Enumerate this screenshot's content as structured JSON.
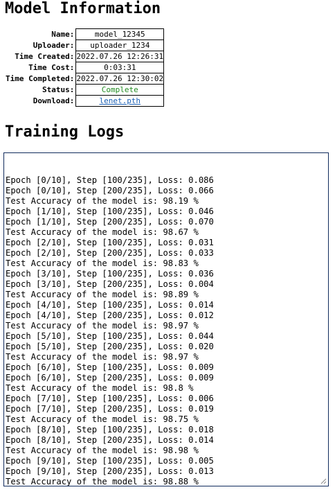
{
  "model_info": {
    "heading": "Model Information",
    "rows": [
      {
        "key": "Name:",
        "value": "model_12345"
      },
      {
        "key": "Uploader:",
        "value": "uploader_1234"
      },
      {
        "key": "Time Created:",
        "value": "2022.07.26 12:26:31"
      },
      {
        "key": "Time Cost:",
        "value": "0:03:31"
      },
      {
        "key": "Time Completed:",
        "value": "2022.07.26 12:30:02"
      },
      {
        "key": "Status:",
        "value": "Complete"
      },
      {
        "key": "Download:",
        "value": "lenet.pth"
      }
    ],
    "status_color": "#228b22",
    "link_color": "#1a5fb4"
  },
  "training_logs": {
    "heading": "Training Logs",
    "lines": [
      "Epoch [0/10], Step [100/235], Loss: 0.086",
      "Epoch [0/10], Step [200/235], Loss: 0.066",
      "Test Accuracy of the model is: 98.19 %",
      "Epoch [1/10], Step [100/235], Loss: 0.046",
      "Epoch [1/10], Step [200/235], Loss: 0.070",
      "Test Accuracy of the model is: 98.67 %",
      "Epoch [2/10], Step [100/235], Loss: 0.031",
      "Epoch [2/10], Step [200/235], Loss: 0.033",
      "Test Accuracy of the model is: 98.83 %",
      "Epoch [3/10], Step [100/235], Loss: 0.036",
      "Epoch [3/10], Step [200/235], Loss: 0.004",
      "Test Accuracy of the model is: 98.89 %",
      "Epoch [4/10], Step [100/235], Loss: 0.014",
      "Epoch [4/10], Step [200/235], Loss: 0.012",
      "Test Accuracy of the model is: 98.97 %",
      "Epoch [5/10], Step [100/235], Loss: 0.044",
      "Epoch [5/10], Step [200/235], Loss: 0.020",
      "Test Accuracy of the model is: 98.97 %",
      "Epoch [6/10], Step [100/235], Loss: 0.009",
      "Epoch [6/10], Step [200/235], Loss: 0.009",
      "Test Accuracy of the model is: 98.8 %",
      "Epoch [7/10], Step [100/235], Loss: 0.006",
      "Epoch [7/10], Step [200/235], Loss: 0.019",
      "Test Accuracy of the model is: 98.75 %",
      "Epoch [8/10], Step [100/235], Loss: 0.018",
      "Epoch [8/10], Step [200/235], Loss: 0.014",
      "Test Accuracy of the model is: 98.98 %",
      "Epoch [9/10], Step [100/235], Loss: 0.005",
      "Epoch [9/10], Step [200/235], Loss: 0.013",
      "Test Accuracy of the model is: 98.88 %"
    ],
    "resize_icon": "resize-grip-icon"
  }
}
